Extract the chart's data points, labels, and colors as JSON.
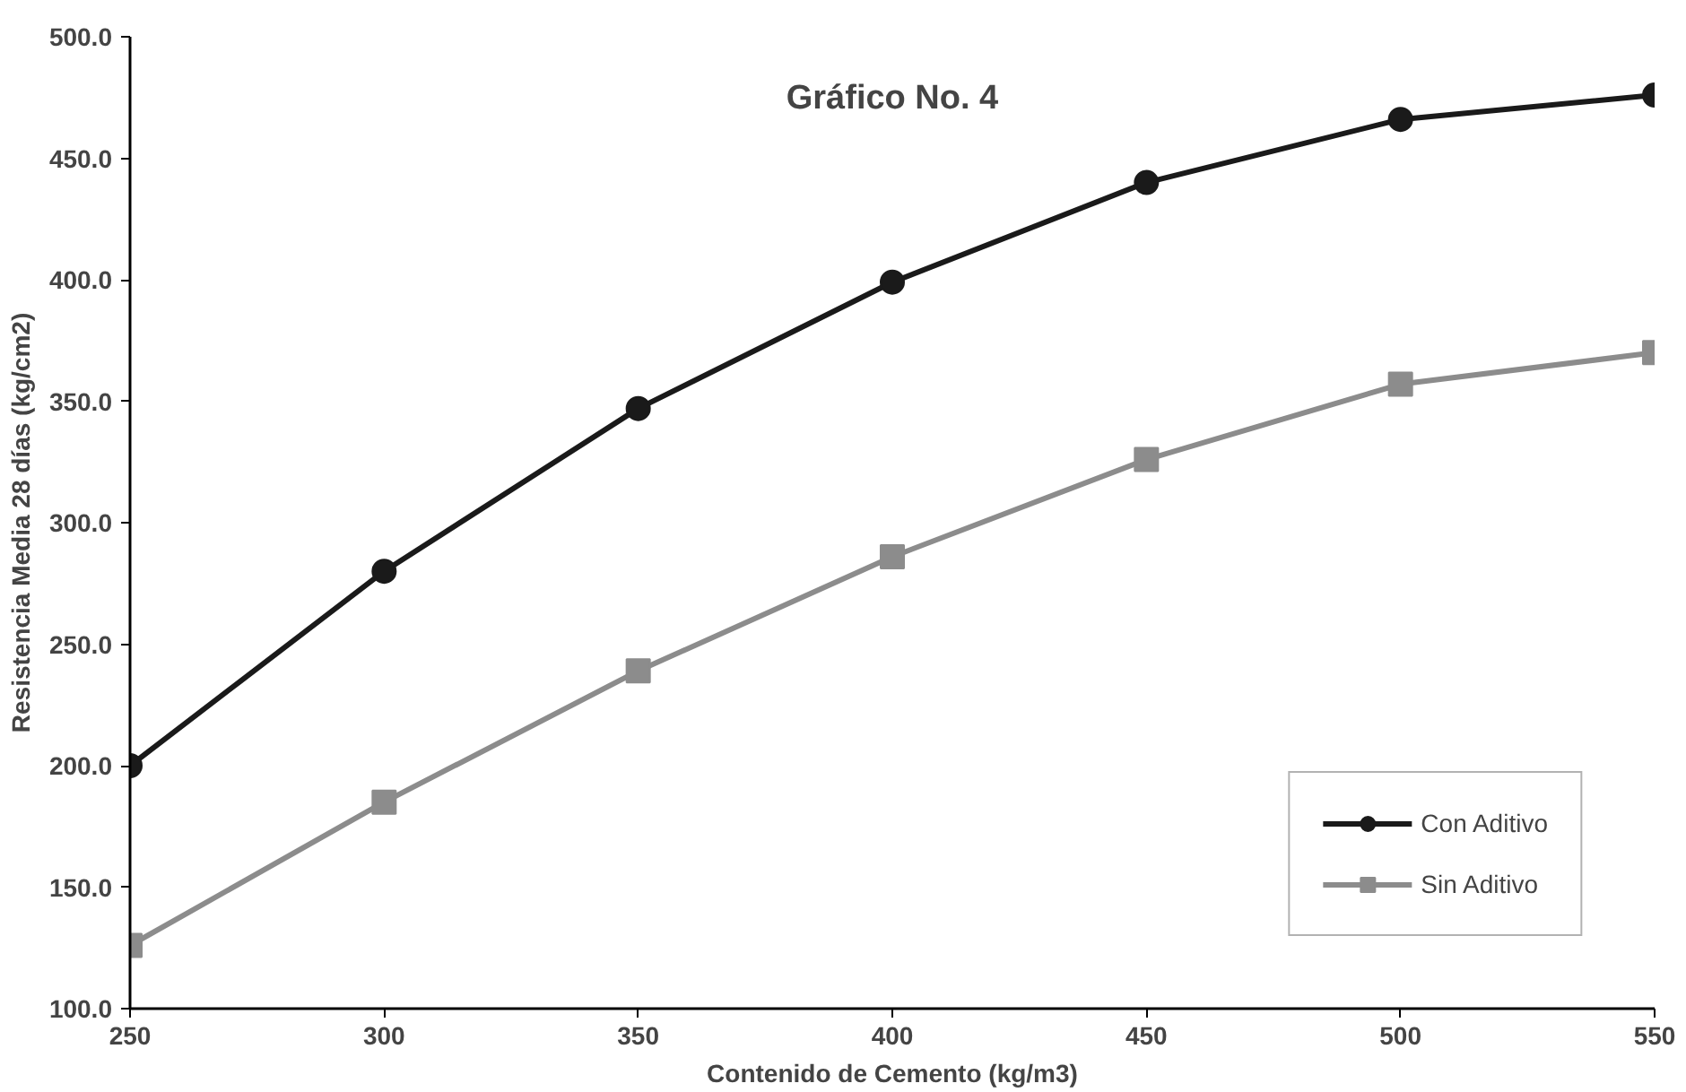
{
  "chart_data": {
    "type": "line",
    "title": "Gráfico No. 4",
    "xlabel": "Contenido de Cemento (kg/m3)",
    "ylabel": "Resistencia Media 28 días (kg/cm2)",
    "x": [
      250,
      300,
      350,
      400,
      450,
      500,
      550
    ],
    "series": [
      {
        "name": "Con Aditivo",
        "color": "#1a1a1a",
        "marker": "circle",
        "values": [
          200,
          280,
          347,
          399,
          440,
          466,
          476
        ]
      },
      {
        "name": "Sin Aditivo",
        "color": "#8c8c8c",
        "marker": "square",
        "values": [
          126,
          185,
          239,
          286,
          326,
          357,
          370
        ]
      }
    ],
    "xlim": [
      250,
      550
    ],
    "xticks": [
      250,
      300,
      350,
      400,
      450,
      500,
      550
    ],
    "ylim": [
      100,
      500
    ],
    "yticks": [
      {
        "value": 100,
        "label": "100.0"
      },
      {
        "value": 150,
        "label": "150.0"
      },
      {
        "value": 200,
        "label": "200.0"
      },
      {
        "value": 250,
        "label": "250.0"
      },
      {
        "value": 300,
        "label": "300.0"
      },
      {
        "value": 350,
        "label": "350.0"
      },
      {
        "value": 400,
        "label": "400.0"
      },
      {
        "value": 450,
        "label": "450.0"
      },
      {
        "value": 500,
        "label": "500.0"
      }
    ],
    "grid": false,
    "legend": "bottom right",
    "line_style": "solid"
  }
}
